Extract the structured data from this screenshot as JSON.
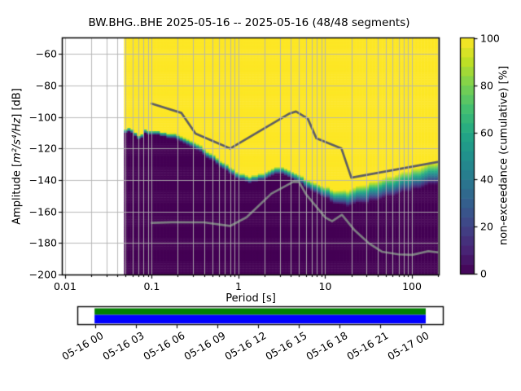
{
  "title": "BW.BHG..BHE   2025-05-16 -- 2025-05-16  (48/48 segments)",
  "axes": {
    "xlabel": "Period [s]",
    "ylabel_plain": "Amplitude [m²/s⁴/Hz] [dB]",
    "ylabel_segments": [
      {
        "t": "Amplitude [",
        "italic": false
      },
      {
        "t": "m²/s⁴/Hz",
        "italic": true
      },
      {
        "t": "] [dB]",
        "italic": false
      }
    ],
    "x_ticks": [
      {
        "v": 0.01,
        "label": "0.01"
      },
      {
        "v": 0.1,
        "label": "0.1"
      },
      {
        "v": 1,
        "label": "1"
      },
      {
        "v": 10,
        "label": "10"
      },
      {
        "v": 100,
        "label": "100"
      }
    ],
    "y_ticks": [
      {
        "v": -60,
        "label": "−60"
      },
      {
        "v": -80,
        "label": "−80"
      },
      {
        "v": -100,
        "label": "−100"
      },
      {
        "v": -120,
        "label": "−120"
      },
      {
        "v": -140,
        "label": "−140"
      },
      {
        "v": -160,
        "label": "−160"
      },
      {
        "v": -180,
        "label": "−180"
      },
      {
        "v": -200,
        "label": "−200"
      }
    ]
  },
  "colorbar": {
    "label": "non-exceedance (cumulative) [%]",
    "ticks": [
      {
        "v": 0,
        "label": "0"
      },
      {
        "v": 20,
        "label": "20"
      },
      {
        "v": 40,
        "label": "40"
      },
      {
        "v": 60,
        "label": "60"
      },
      {
        "v": 80,
        "label": "80"
      },
      {
        "v": 100,
        "label": "100"
      }
    ],
    "steps": 25,
    "range": [
      0,
      100
    ]
  },
  "timeline": {
    "tick_labels": [
      "05-16 00",
      "05-16 03",
      "05-16 06",
      "05-16 09",
      "05-16 12",
      "05-16 15",
      "05-16 18",
      "05-16 21",
      "05-17 00"
    ],
    "coverage_top_color": "#008000",
    "coverage_bottom_color": "#0000ff",
    "coverage_start_frac": 0.045,
    "coverage_end_frac": 0.953
  },
  "colors": {
    "grid": "#b2b2b2",
    "nhnm_line": "#5e5e64",
    "nlnm_line": "#7d7d82",
    "no_data": "#ffffff",
    "spine": "#000000",
    "cmap_top": "#fde725",
    "cmap_bottom": "#440154"
  },
  "chart_data": {
    "type": "heatmap",
    "title": "BW.BHG..BHE   2025-05-16 -- 2025-05-16  (48/48 segments)",
    "xlabel": "Period [s]",
    "ylabel": "Amplitude [m²/s⁴/Hz] [dB]",
    "x_scale": "log",
    "xlim": [
      0.0094,
      204
    ],
    "ylim": [
      -200,
      -50
    ],
    "grid": true,
    "colormap": "viridis",
    "colorbar_label": "non-exceedance (cumulative) [%]",
    "colorbar_range": [
      0,
      100
    ],
    "segments_used": 48,
    "segments_total": 48,
    "date_start": "2025-05-16",
    "date_end": "2025-05-16",
    "station_id": "BW.BHG..BHE",
    "no_data_below_period_s": 0.048,
    "period_bins_per_octave": 8,
    "db_bin_width": 1,
    "cumulative_boundary": {
      "description": "50% non-exceedance level vs period; width_db = dB span of 0→100% transition",
      "points": [
        [
          0.048,
          -108.5,
          3.0
        ],
        [
          0.062,
          -108.8,
          3.0
        ],
        [
          0.067,
          -112.5,
          3.0
        ],
        [
          0.079,
          -112.5,
          3.0
        ],
        [
          0.083,
          -109.8,
          3.0
        ],
        [
          0.13,
          -110.5,
          3.0
        ],
        [
          0.2,
          -113.0,
          3.5
        ],
        [
          0.3,
          -117.5,
          4.0
        ],
        [
          0.5,
          -126.0,
          4.0
        ],
        [
          0.8,
          -134.0,
          4.2
        ],
        [
          1.2,
          -139.5,
          4.2
        ],
        [
          1.7,
          -139.0,
          4.2
        ],
        [
          2.9,
          -133.5,
          4.5
        ],
        [
          4.5,
          -137.5,
          5.0
        ],
        [
          7.0,
          -144.0,
          6.0
        ],
        [
          12.0,
          -150.0,
          8.0
        ],
        [
          18.0,
          -151.5,
          10.0
        ],
        [
          30.0,
          -148.5,
          12.0
        ],
        [
          60.0,
          -143.5,
          13.0
        ],
        [
          120.0,
          -138.5,
          13.5
        ],
        [
          204.0,
          -135.0,
          14.0
        ]
      ]
    },
    "noise_models": {
      "nhnm": [
        [
          0.1,
          -91.5
        ],
        [
          0.22,
          -97.4
        ],
        [
          0.32,
          -110.5
        ],
        [
          0.8,
          -120.0
        ],
        [
          3.8,
          -98.0
        ],
        [
          4.6,
          -96.5
        ],
        [
          6.3,
          -101.0
        ],
        [
          7.9,
          -113.5
        ],
        [
          15.4,
          -120.0
        ],
        [
          20.0,
          -138.5
        ],
        [
          204.0,
          -128.4
        ]
      ],
      "nlnm": [
        [
          0.1,
          -167.2
        ],
        [
          0.17,
          -166.8
        ],
        [
          0.4,
          -166.9
        ],
        [
          0.8,
          -169.2
        ],
        [
          1.24,
          -163.7
        ],
        [
          2.4,
          -148.6
        ],
        [
          4.3,
          -141.1
        ],
        [
          5.0,
          -141.3
        ],
        [
          6.0,
          -149.0
        ],
        [
          10.0,
          -163.7
        ],
        [
          12.0,
          -166.2
        ],
        [
          15.6,
          -162.1
        ],
        [
          21.9,
          -172.0
        ],
        [
          31.6,
          -180.0
        ],
        [
          45.0,
          -185.5
        ],
        [
          70.0,
          -187.2
        ],
        [
          101.0,
          -187.5
        ],
        [
          154.0,
          -185.2
        ],
        [
          204.0,
          -186.0
        ]
      ]
    }
  }
}
